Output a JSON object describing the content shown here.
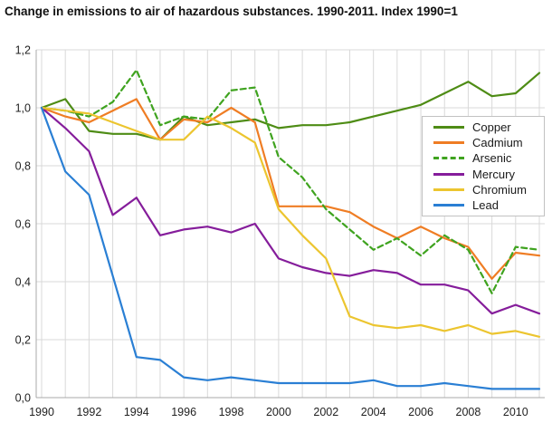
{
  "chart_data": {
    "type": "line",
    "title": "Change in emissions to air of hazardous substances. 1990-2011. Index 1990=1",
    "xlabel": "",
    "ylabel": "",
    "x": [
      1990,
      1991,
      1992,
      1993,
      1994,
      1995,
      1996,
      1997,
      1998,
      1999,
      2000,
      2001,
      2002,
      2003,
      2004,
      2005,
      2006,
      2007,
      2008,
      2009,
      2010,
      2011
    ],
    "x_tick_labels": [
      "1990",
      "1992",
      "1994",
      "1996",
      "1998",
      "2000",
      "2002",
      "2004",
      "2006",
      "2008",
      "2010"
    ],
    "x_tick_years": [
      1990,
      1992,
      1994,
      1996,
      1998,
      2000,
      2002,
      2004,
      2006,
      2008,
      2010
    ],
    "ylim": [
      0,
      1.2
    ],
    "y_ticks": [
      {
        "value": 1.2,
        "label": "1,2"
      },
      {
        "value": 1.0,
        "label": "1,0"
      },
      {
        "value": 0.8,
        "label": "0,8"
      },
      {
        "value": 0.6,
        "label": "0,6"
      },
      {
        "value": 0.4,
        "label": "0,4"
      },
      {
        "value": 0.2,
        "label": "0,2"
      },
      {
        "value": 0.0,
        "label": "0,0"
      }
    ],
    "grid": true,
    "legend_position": "inside-right",
    "colors": {
      "grid": "#d9d9d9",
      "axis": "#a8a8a8",
      "tick_text": "#222222"
    },
    "series": [
      {
        "name": "Copper",
        "color": "#4e8c15",
        "dash": "solid",
        "values": [
          1.0,
          1.03,
          0.92,
          0.91,
          0.91,
          0.89,
          0.97,
          0.94,
          0.95,
          0.96,
          0.93,
          0.94,
          0.94,
          0.95,
          0.97,
          0.99,
          1.01,
          1.05,
          1.09,
          1.04,
          1.05,
          1.12
        ]
      },
      {
        "name": "Cadmium",
        "color": "#ef7d24",
        "dash": "solid",
        "values": [
          1.0,
          0.97,
          0.95,
          0.99,
          1.03,
          0.89,
          0.96,
          0.95,
          1.0,
          0.95,
          0.66,
          0.66,
          0.66,
          0.64,
          0.59,
          0.55,
          0.59,
          0.55,
          0.52,
          0.41,
          0.5,
          0.49
        ]
      },
      {
        "name": "Arsenic",
        "color": "#3fa31f",
        "dash": "dashed",
        "values": [
          1.0,
          0.99,
          0.97,
          1.02,
          1.13,
          0.94,
          0.97,
          0.96,
          1.06,
          1.07,
          0.83,
          0.76,
          0.65,
          0.58,
          0.51,
          0.55,
          0.49,
          0.56,
          0.51,
          0.36,
          0.52,
          0.51
        ]
      },
      {
        "name": "Mercury",
        "color": "#851d9b",
        "dash": "solid",
        "values": [
          1.0,
          0.93,
          0.85,
          0.63,
          0.69,
          0.56,
          0.58,
          0.59,
          0.57,
          0.6,
          0.48,
          0.45,
          0.43,
          0.42,
          0.44,
          0.43,
          0.39,
          0.39,
          0.37,
          0.29,
          0.32,
          0.29
        ]
      },
      {
        "name": "Chromium",
        "color": "#ecc52f",
        "dash": "solid",
        "values": [
          1.0,
          0.99,
          0.98,
          0.95,
          0.92,
          0.89,
          0.89,
          0.97,
          0.93,
          0.88,
          0.65,
          0.56,
          0.48,
          0.28,
          0.25,
          0.24,
          0.25,
          0.23,
          0.25,
          0.22,
          0.23,
          0.21
        ]
      },
      {
        "name": "Lead",
        "color": "#2a7fd4",
        "dash": "solid",
        "values": [
          1.0,
          0.78,
          0.7,
          0.42,
          0.14,
          0.13,
          0.07,
          0.06,
          0.07,
          0.06,
          0.05,
          0.05,
          0.05,
          0.05,
          0.06,
          0.04,
          0.04,
          0.05,
          0.04,
          0.03,
          0.03,
          0.03
        ]
      }
    ]
  }
}
